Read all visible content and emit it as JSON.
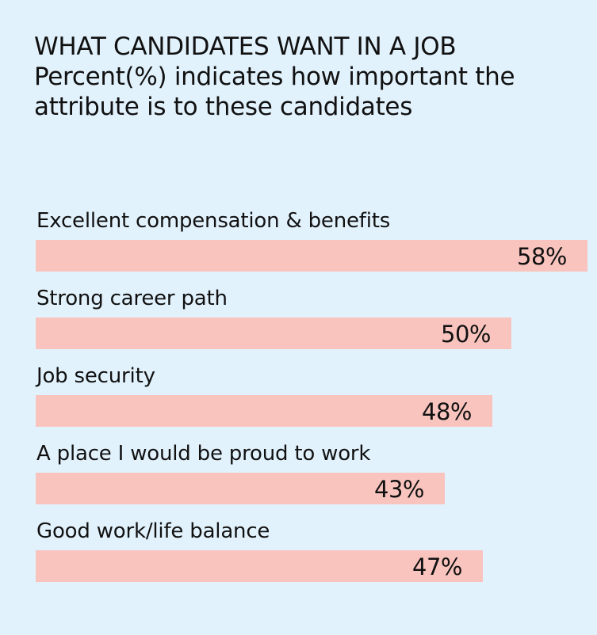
{
  "colors": {
    "background": "#e2f2fd",
    "bar": "#f9c4be",
    "text": "#111111"
  },
  "chart_data": {
    "type": "bar",
    "orientation": "horizontal",
    "title": "WHAT CANDIDATES WANT IN A JOB",
    "subtitle": "Percent(%) indicates how important the attribute is to these candidates",
    "categories": [
      "Excellent compensation & benefits",
      "Strong career path",
      "Job security",
      "A place I would be proud to work",
      "Good work/life balance"
    ],
    "values": [
      58,
      50,
      48,
      43,
      47
    ],
    "data_labels": [
      "58%",
      "50%",
      "48%",
      "43%",
      "47%"
    ],
    "unit": "%",
    "xlim": [
      0,
      58
    ],
    "grid": false,
    "legend": "none"
  }
}
